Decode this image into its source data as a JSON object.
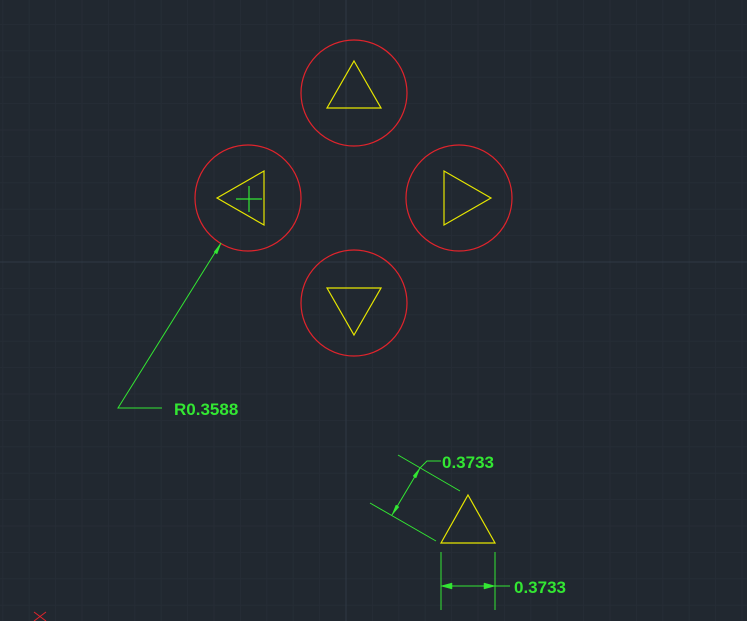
{
  "colors": {
    "background": "#212830",
    "grid_major": "#2f3944",
    "grid_minor": "#262d36",
    "circle": "#e0242c",
    "triangle": "#e6e600",
    "dimension": "#33e633",
    "cursor": "#33e633",
    "ucs_marker": "#e0242c"
  },
  "drawing": {
    "buttons": [
      {
        "name": "up",
        "icon": "triangle-up-icon"
      },
      {
        "name": "left",
        "icon": "triangle-left-icon"
      },
      {
        "name": "right",
        "icon": "triangle-right-icon"
      },
      {
        "name": "down",
        "icon": "triangle-down-icon"
      }
    ],
    "sample_triangle": {
      "icon": "triangle-up-icon"
    }
  },
  "dimensions": {
    "radius_label": "R0.3588",
    "aligned_label": "0.3733",
    "linear_label": "0.3733"
  }
}
